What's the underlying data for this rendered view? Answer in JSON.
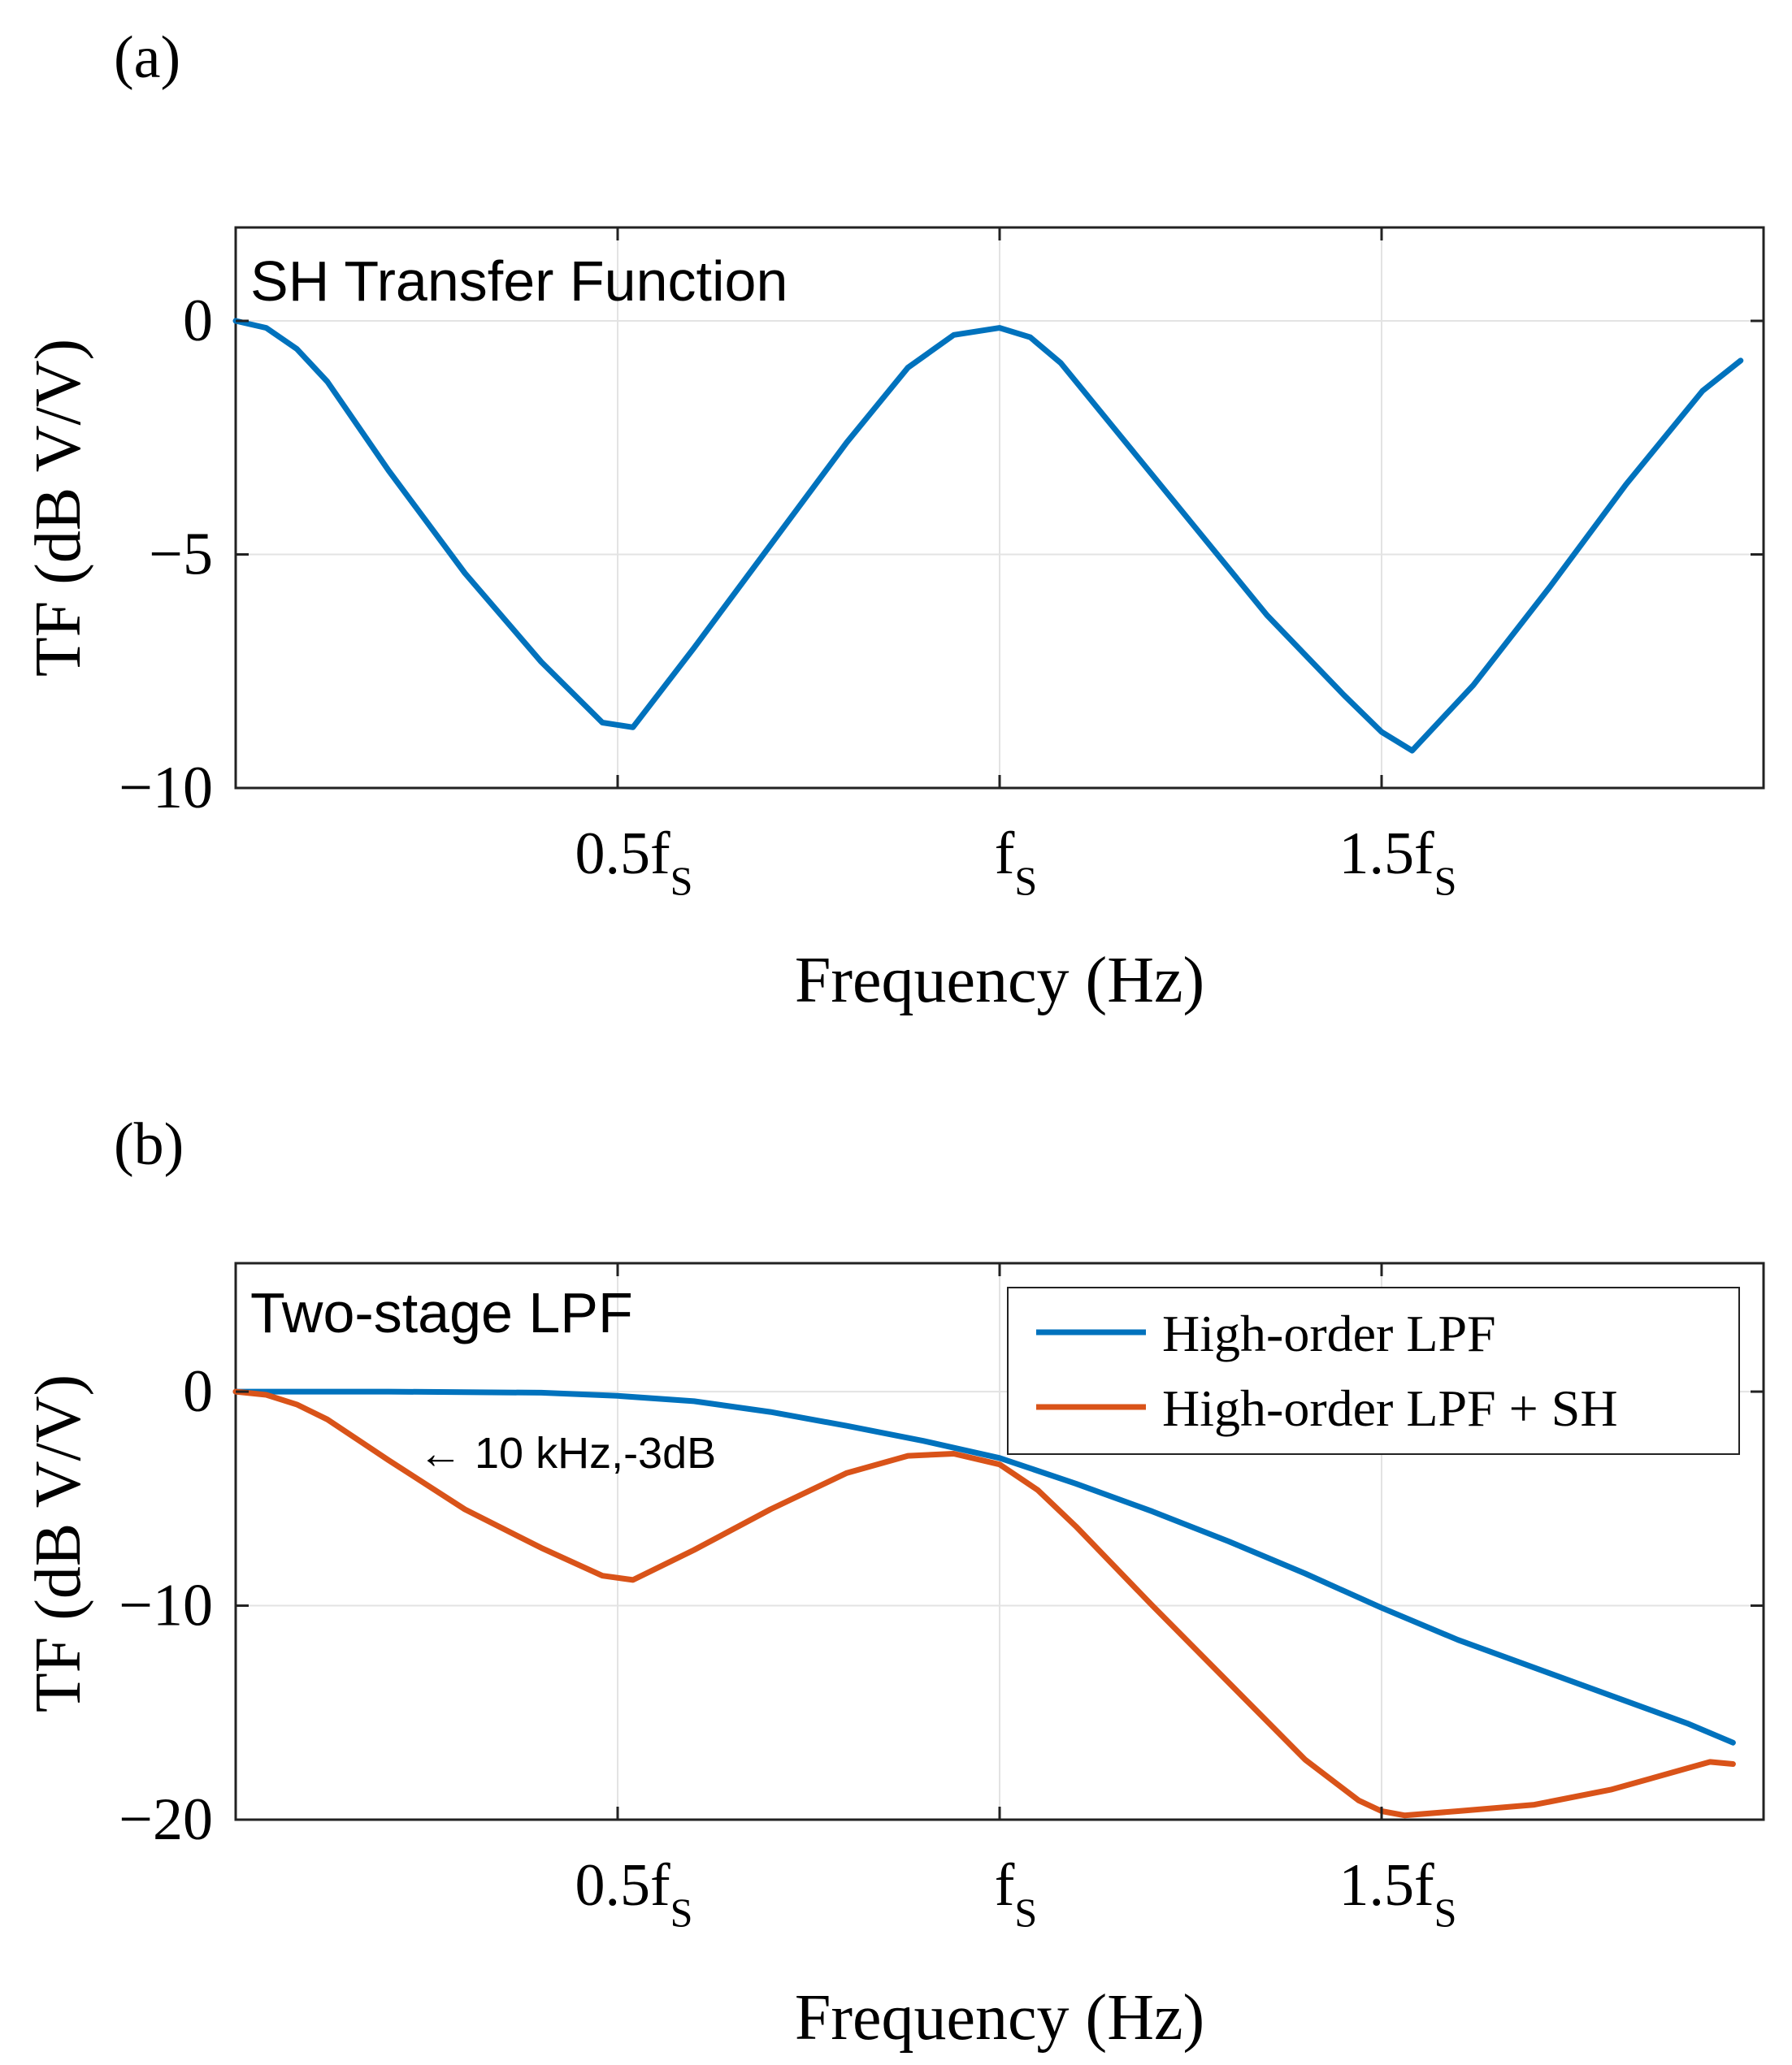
{
  "chart_data": [
    {
      "type": "line",
      "panel_label": "(a)",
      "title": "SH Transfer Function",
      "xlabel": "Frequency (Hz)",
      "ylabel": "TF (dB V/V)",
      "xlim": [
        0,
        2
      ],
      "ylim": [
        -10,
        2
      ],
      "xticks": [
        {
          "value": 0.5,
          "main": "0.5f",
          "sub": "S"
        },
        {
          "value": 1.0,
          "main": "f",
          "sub": "S"
        },
        {
          "value": 1.5,
          "main": "1.5f",
          "sub": "S"
        }
      ],
      "yticks": [
        {
          "value": 0,
          "label": "0"
        },
        {
          "value": -5,
          "label": "−5"
        },
        {
          "value": -10,
          "label": "−10"
        }
      ],
      "grid": true,
      "series": [
        {
          "name": "SH",
          "color": "#0072BD",
          "x": [
            0,
            0.04,
            0.08,
            0.12,
            0.2,
            0.3,
            0.4,
            0.48,
            0.52,
            0.6,
            0.7,
            0.8,
            0.88,
            0.94,
            1.0,
            1.04,
            1.08,
            1.15,
            1.25,
            1.35,
            1.45,
            1.5,
            1.54,
            1.62,
            1.72,
            1.82,
            1.92,
            1.97
          ],
          "y": [
            0,
            -0.15,
            -0.6,
            -1.3,
            -3.2,
            -5.4,
            -7.3,
            -8.6,
            -8.7,
            -7.0,
            -4.8,
            -2.6,
            -1.0,
            -0.3,
            -0.15,
            -0.35,
            -0.9,
            -2.3,
            -4.3,
            -6.3,
            -8.0,
            -8.8,
            -9.2,
            -7.8,
            -5.7,
            -3.5,
            -1.5,
            -0.85
          ]
        }
      ]
    },
    {
      "type": "line",
      "panel_label": "(b)",
      "title": "Two-stage LPF",
      "xlabel": "Frequency (Hz)",
      "ylabel": "TF (dB V/V)",
      "xlim": [
        0,
        2
      ],
      "ylim": [
        -20,
        6
      ],
      "xticks": [
        {
          "value": 0.5,
          "main": "0.5f",
          "sub": "S"
        },
        {
          "value": 1.0,
          "main": "f",
          "sub": "S"
        },
        {
          "value": 1.5,
          "main": "1.5f",
          "sub": "S"
        }
      ],
      "yticks": [
        {
          "value": 0,
          "label": "0"
        },
        {
          "value": -10,
          "label": "−10"
        },
        {
          "value": -20,
          "label": "−20"
        }
      ],
      "grid": true,
      "legend": "top-right",
      "annotation": "← 10 kHz,-3dB",
      "series": [
        {
          "name": "High-order LPF",
          "color": "#0072BD",
          "x": [
            0,
            0.2,
            0.4,
            0.5,
            0.6,
            0.7,
            0.8,
            0.9,
            1.0,
            1.1,
            1.2,
            1.3,
            1.4,
            1.5,
            1.6,
            1.7,
            1.8,
            1.9,
            1.96
          ],
          "y": [
            0,
            0,
            -0.05,
            -0.2,
            -0.45,
            -0.95,
            -1.6,
            -2.3,
            -3.1,
            -4.3,
            -5.6,
            -7.0,
            -8.5,
            -10.1,
            -11.6,
            -12.9,
            -14.2,
            -15.5,
            -16.4
          ]
        },
        {
          "name": "High-order LPF + SH",
          "color": "#D95319",
          "x": [
            0,
            0.04,
            0.08,
            0.12,
            0.2,
            0.3,
            0.4,
            0.48,
            0.52,
            0.6,
            0.7,
            0.8,
            0.88,
            0.94,
            1.0,
            1.05,
            1.1,
            1.2,
            1.3,
            1.4,
            1.47,
            1.5,
            1.53,
            1.6,
            1.7,
            1.8,
            1.9,
            1.93,
            1.96
          ],
          "y": [
            0,
            -0.15,
            -0.6,
            -1.3,
            -3.2,
            -5.5,
            -7.3,
            -8.6,
            -8.8,
            -7.4,
            -5.5,
            -3.8,
            -3.0,
            -2.9,
            -3.4,
            -4.6,
            -6.3,
            -10.0,
            -13.6,
            -17.2,
            -19.1,
            -19.6,
            -19.8,
            -19.6,
            -19.3,
            -18.6,
            -17.6,
            -17.3,
            -17.4
          ]
        }
      ]
    }
  ]
}
